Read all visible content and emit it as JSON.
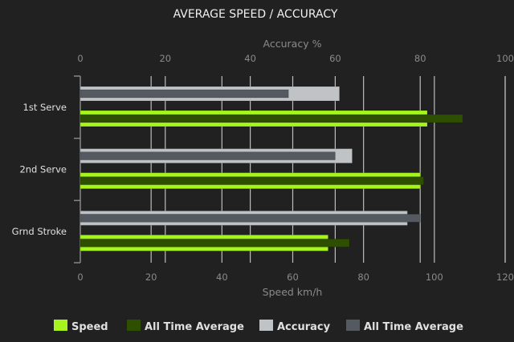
{
  "chart_data": {
    "type": "bar",
    "orientation": "horizontal",
    "title": "AVERAGE SPEED / ACCURACY",
    "categories": [
      "1st Serve",
      "2nd Serve",
      "Grnd Stroke"
    ],
    "top_axis": {
      "label": "Accuracy %",
      "range": [
        0,
        100
      ],
      "ticks": [
        0,
        20,
        40,
        60,
        80,
        100
      ]
    },
    "bottom_axis": {
      "label": "Speed km/h",
      "range": [
        0,
        120
      ],
      "ticks": [
        0,
        20,
        40,
        60,
        80,
        100,
        120
      ]
    },
    "grid": true,
    "legend_position": "bottom",
    "series": [
      {
        "name": "Speed",
        "axis": "bottom",
        "color": "#a6f51d",
        "values": [
          98,
          96,
          70
        ]
      },
      {
        "name": "All Time Average",
        "axis": "bottom",
        "color": "#2f4f00",
        "values": [
          108,
          97,
          76
        ]
      },
      {
        "name": "Accuracy",
        "axis": "top",
        "color": "#bfc3c6",
        "values": [
          61,
          64,
          77
        ]
      },
      {
        "name": "All Time Average",
        "axis": "top",
        "color": "#555a61",
        "values": [
          49,
          60,
          80
        ]
      }
    ]
  }
}
